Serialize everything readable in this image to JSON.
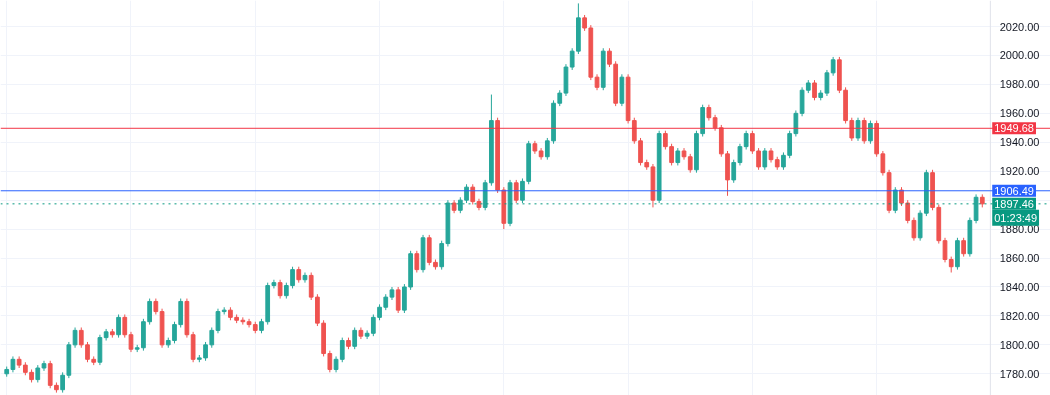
{
  "chart_data": {
    "type": "candlestick",
    "categories": [
      null,
      null,
      null,
      null,
      null,
      null,
      null,
      null,
      null,
      null,
      null,
      null,
      null,
      null,
      null,
      null,
      null,
      null,
      null,
      null,
      null,
      null,
      null,
      null,
      null,
      null,
      null,
      null,
      null,
      null,
      null,
      null,
      null,
      null,
      null,
      null,
      null,
      null,
      null,
      null,
      null,
      null,
      null,
      null,
      null,
      null,
      null,
      null,
      null,
      null,
      null,
      null,
      null,
      null,
      null,
      null,
      null,
      null,
      null,
      null,
      null,
      null,
      null,
      null,
      null,
      null,
      null,
      null,
      null,
      null,
      null,
      null,
      null,
      null,
      null,
      null,
      null,
      null,
      null,
      null,
      null,
      null,
      null,
      null,
      null,
      null,
      null,
      null,
      null,
      null,
      null,
      null,
      null,
      null,
      null,
      null,
      null,
      null,
      null,
      null,
      null,
      null,
      null,
      null,
      null,
      null,
      null,
      null,
      null,
      null,
      null,
      null,
      null,
      null,
      null,
      null,
      null,
      null,
      null,
      null,
      null,
      null,
      null,
      null,
      null,
      null,
      null,
      null,
      null,
      null,
      null,
      null,
      null,
      null,
      null,
      null,
      null,
      null,
      null,
      null,
      null,
      null,
      null,
      null,
      null,
      null,
      null,
      null,
      null,
      null,
      null,
      null,
      null,
      null,
      null,
      null,
      null,
      null
    ],
    "ohlc": [
      [
        1780,
        1785,
        1778,
        1783
      ],
      [
        1783,
        1792,
        1781,
        1790
      ],
      [
        1790,
        1792,
        1784,
        1786
      ],
      [
        1786,
        1788,
        1779,
        1781
      ],
      [
        1781,
        1783,
        1774,
        1776
      ],
      [
        1776,
        1786,
        1774,
        1784
      ],
      [
        1784,
        1789,
        1782,
        1787
      ],
      [
        1787,
        1789,
        1770,
        1772
      ],
      [
        1772,
        1774,
        1767,
        1769
      ],
      [
        1769,
        1781,
        1767,
        1779
      ],
      [
        1779,
        1802,
        1777,
        1800
      ],
      [
        1800,
        1812,
        1798,
        1810
      ],
      [
        1810,
        1812,
        1798,
        1800
      ],
      [
        1800,
        1802,
        1788,
        1790
      ],
      [
        1790,
        1792,
        1786,
        1788
      ],
      [
        1788,
        1807,
        1786,
        1805
      ],
      [
        1805,
        1811,
        1803,
        1809
      ],
      [
        1809,
        1811,
        1805,
        1807
      ],
      [
        1807,
        1821,
        1805,
        1819
      ],
      [
        1819,
        1821,
        1805,
        1807
      ],
      [
        1807,
        1809,
        1795,
        1797
      ],
      [
        1797,
        1800,
        1795,
        1798
      ],
      [
        1798,
        1818,
        1796,
        1816
      ],
      [
        1816,
        1832,
        1814,
        1830
      ],
      [
        1830,
        1832,
        1821,
        1823
      ],
      [
        1823,
        1825,
        1798,
        1800
      ],
      [
        1800,
        1805,
        1798,
        1803
      ],
      [
        1803,
        1816,
        1801,
        1814
      ],
      [
        1814,
        1832,
        1812,
        1830
      ],
      [
        1830,
        1832,
        1805,
        1807
      ],
      [
        1807,
        1809,
        1788,
        1790
      ],
      [
        1790,
        1793,
        1788,
        1791
      ],
      [
        1791,
        1802,
        1789,
        1800
      ],
      [
        1800,
        1812,
        1798,
        1810
      ],
      [
        1810,
        1825,
        1808,
        1823
      ],
      [
        1823,
        1826,
        1821,
        1824
      ],
      [
        1824,
        1826,
        1817,
        1819
      ],
      [
        1819,
        1821,
        1815,
        1817
      ],
      [
        1817,
        1819,
        1814,
        1816
      ],
      [
        1816,
        1818,
        1812,
        1814
      ],
      [
        1814,
        1816,
        1808,
        1810
      ],
      [
        1810,
        1818,
        1808,
        1816
      ],
      [
        1816,
        1843,
        1814,
        1841
      ],
      [
        1841,
        1845,
        1839,
        1843
      ],
      [
        1843,
        1845,
        1832,
        1834
      ],
      [
        1834,
        1843,
        1832,
        1841
      ],
      [
        1841,
        1854,
        1839,
        1852
      ],
      [
        1852,
        1854,
        1843,
        1845
      ],
      [
        1845,
        1850,
        1843,
        1848
      ],
      [
        1848,
        1850,
        1831,
        1833
      ],
      [
        1833,
        1835,
        1813,
        1815
      ],
      [
        1815,
        1817,
        1792,
        1794
      ],
      [
        1794,
        1796,
        1781,
        1783
      ],
      [
        1783,
        1792,
        1781,
        1790
      ],
      [
        1790,
        1805,
        1788,
        1803
      ],
      [
        1803,
        1805,
        1797,
        1799
      ],
      [
        1799,
        1812,
        1797,
        1810
      ],
      [
        1810,
        1812,
        1804,
        1806
      ],
      [
        1806,
        1810,
        1804,
        1808
      ],
      [
        1808,
        1821,
        1806,
        1819
      ],
      [
        1819,
        1828,
        1817,
        1826
      ],
      [
        1826,
        1835,
        1824,
        1833
      ],
      [
        1833,
        1840,
        1831,
        1838
      ],
      [
        1838,
        1840,
        1822,
        1824
      ],
      [
        1824,
        1842,
        1822,
        1840
      ],
      [
        1840,
        1865,
        1838,
        1863
      ],
      [
        1863,
        1865,
        1850,
        1852
      ],
      [
        1852,
        1876,
        1850,
        1874
      ],
      [
        1874,
        1876,
        1855,
        1857
      ],
      [
        1857,
        1859,
        1852,
        1854
      ],
      [
        1854,
        1872,
        1852,
        1870
      ],
      [
        1870,
        1900,
        1868,
        1898
      ],
      [
        1898,
        1900,
        1891,
        1893
      ],
      [
        1893,
        1902,
        1891,
        1900
      ],
      [
        1900,
        1911,
        1898,
        1909
      ],
      [
        1909,
        1911,
        1897,
        1899
      ],
      [
        1899,
        1901,
        1893,
        1895
      ],
      [
        1895,
        1914,
        1893,
        1912
      ],
      [
        1912,
        1973,
        1910,
        1955
      ],
      [
        1955,
        1957,
        1905,
        1907
      ],
      [
        1907,
        1909,
        1880,
        1884
      ],
      [
        1884,
        1914,
        1882,
        1912
      ],
      [
        1912,
        1914,
        1898,
        1900
      ],
      [
        1900,
        1915,
        1898,
        1913
      ],
      [
        1913,
        1941,
        1911,
        1939
      ],
      [
        1939,
        1941,
        1932,
        1934
      ],
      [
        1934,
        1936,
        1928,
        1930
      ],
      [
        1930,
        1943,
        1928,
        1941
      ],
      [
        1941,
        1969,
        1939,
        1967
      ],
      [
        1967,
        1976,
        1965,
        1974
      ],
      [
        1974,
        1994,
        1972,
        1992
      ],
      [
        1992,
        2005,
        1990,
        2003
      ],
      [
        2003,
        2036,
        2001,
        2026
      ],
      [
        2026,
        2028,
        2017,
        2019
      ],
      [
        2019,
        2021,
        1983,
        1985
      ],
      [
        1985,
        1987,
        1976,
        1978
      ],
      [
        1978,
        2005,
        1976,
        2003
      ],
      [
        2003,
        2005,
        1992,
        1994
      ],
      [
        1994,
        1996,
        1965,
        1967
      ],
      [
        1967,
        1987,
        1965,
        1985
      ],
      [
        1985,
        1987,
        1953,
        1955
      ],
      [
        1955,
        1957,
        1939,
        1941
      ],
      [
        1941,
        1943,
        1924,
        1926
      ],
      [
        1926,
        1928,
        1921,
        1923
      ],
      [
        1923,
        1925,
        1895,
        1900
      ],
      [
        1900,
        1948,
        1898,
        1946
      ],
      [
        1946,
        1948,
        1935,
        1937
      ],
      [
        1937,
        1939,
        1924,
        1926
      ],
      [
        1926,
        1936,
        1924,
        1934
      ],
      [
        1934,
        1936,
        1928,
        1930
      ],
      [
        1930,
        1932,
        1919,
        1921
      ],
      [
        1921,
        1948,
        1919,
        1946
      ],
      [
        1946,
        1966,
        1944,
        1964
      ],
      [
        1964,
        1966,
        1955,
        1957
      ],
      [
        1957,
        1959,
        1948,
        1950
      ],
      [
        1950,
        1952,
        1930,
        1932
      ],
      [
        1932,
        1934,
        1903,
        1914
      ],
      [
        1914,
        1928,
        1912,
        1926
      ],
      [
        1926,
        1939,
        1924,
        1937
      ],
      [
        1937,
        1948,
        1935,
        1946
      ],
      [
        1946,
        1948,
        1932,
        1934
      ],
      [
        1934,
        1936,
        1921,
        1923
      ],
      [
        1923,
        1936,
        1921,
        1934
      ],
      [
        1934,
        1936,
        1926,
        1928
      ],
      [
        1928,
        1930,
        1921,
        1923
      ],
      [
        1923,
        1933,
        1921,
        1931
      ],
      [
        1931,
        1948,
        1929,
        1946
      ],
      [
        1946,
        1962,
        1944,
        1960
      ],
      [
        1960,
        1978,
        1958,
        1976
      ],
      [
        1976,
        1983,
        1974,
        1981
      ],
      [
        1981,
        1983,
        1969,
        1971
      ],
      [
        1971,
        1976,
        1969,
        1974
      ],
      [
        1974,
        1990,
        1972,
        1988
      ],
      [
        1988,
        1999,
        1986,
        1997
      ],
      [
        1997,
        1999,
        1974,
        1976
      ],
      [
        1976,
        1978,
        1953,
        1955
      ],
      [
        1955,
        1957,
        1941,
        1943
      ],
      [
        1943,
        1957,
        1941,
        1955
      ],
      [
        1955,
        1957,
        1939,
        1941
      ],
      [
        1941,
        1955,
        1939,
        1953
      ],
      [
        1953,
        1955,
        1930,
        1932
      ],
      [
        1932,
        1934,
        1917,
        1919
      ],
      [
        1919,
        1921,
        1891,
        1893
      ],
      [
        1893,
        1909,
        1891,
        1907
      ],
      [
        1907,
        1909,
        1896,
        1898
      ],
      [
        1898,
        1900,
        1884,
        1886
      ],
      [
        1886,
        1888,
        1872,
        1874
      ],
      [
        1874,
        1893,
        1872,
        1891
      ],
      [
        1891,
        1921,
        1889,
        1919
      ],
      [
        1919,
        1921,
        1893,
        1895
      ],
      [
        1895,
        1897,
        1870,
        1872
      ],
      [
        1872,
        1874,
        1857,
        1859
      ],
      [
        1859,
        1861,
        1850,
        1854
      ],
      [
        1854,
        1874,
        1852,
        1872
      ],
      [
        1872,
        1874,
        1861,
        1863
      ],
      [
        1863,
        1888,
        1861,
        1886
      ],
      [
        1886,
        1904,
        1884,
        1902
      ],
      [
        1902,
        1904,
        1895,
        1897.46
      ]
    ],
    "ylim": [
      1765,
      2038
    ],
    "yticks": [
      {
        "value": 1780,
        "label": "1780.00"
      },
      {
        "value": 1800,
        "label": "1800.00"
      },
      {
        "value": 1820,
        "label": "1820.00"
      },
      {
        "value": 1840,
        "label": "1840.00"
      },
      {
        "value": 1860,
        "label": "1860.00"
      },
      {
        "value": 1880,
        "label": "1880.00"
      },
      {
        "value": 1900,
        "label": null
      },
      {
        "value": 1920,
        "label": "1920.00"
      },
      {
        "value": 1940,
        "label": "1940.00"
      },
      {
        "value": 1960,
        "label": "1960.00"
      },
      {
        "value": 1980,
        "label": "1980.00"
      },
      {
        "value": 2000,
        "label": "2000.00"
      },
      {
        "value": 2020,
        "label": "2020.00"
      }
    ],
    "tick_labels": "y",
    "grid": true,
    "ref_lines": [
      {
        "axis": "y",
        "value": 1949.68,
        "label": "1949.68",
        "color": "#f23645",
        "line_style": "solid"
      },
      {
        "axis": "y",
        "value": 1906.49,
        "label": "1906.49",
        "color": "#2962ff",
        "line_style": "solid"
      },
      {
        "axis": "y",
        "value": 1897.46,
        "label": "1897.46",
        "color": "#089981",
        "line_style": "dotted"
      }
    ],
    "annotations": [
      "01:23:49"
    ]
  }
}
